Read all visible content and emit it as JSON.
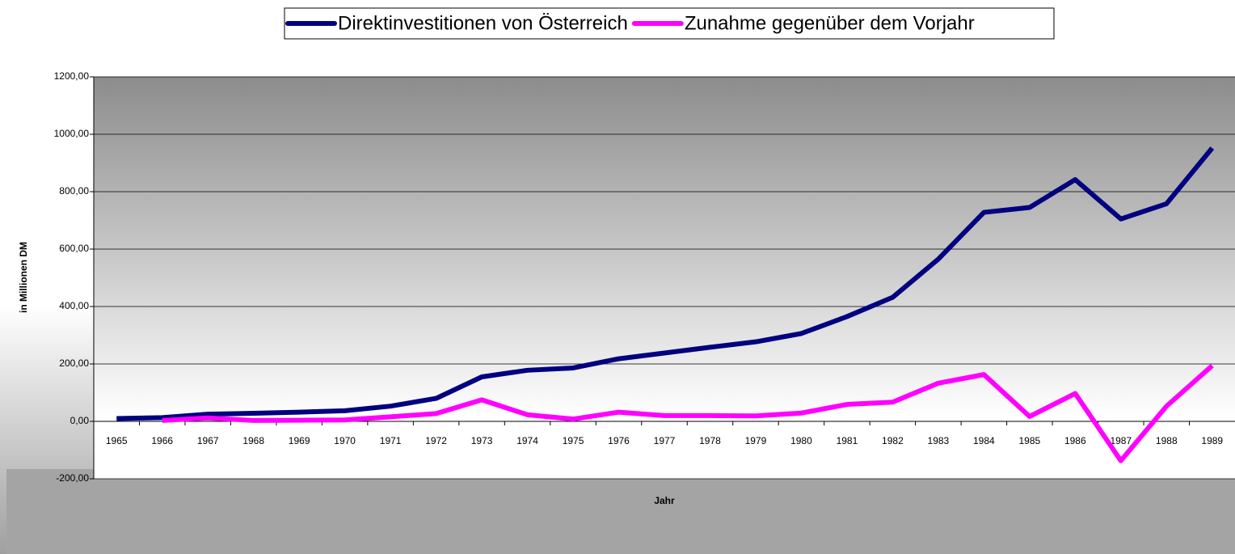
{
  "chart_data": {
    "type": "line",
    "x_label": "Jahr",
    "y_label": "in Millionen DM",
    "categories": [
      "1965",
      "1966",
      "1967",
      "1968",
      "1969",
      "1970",
      "1971",
      "1972",
      "1973",
      "1974",
      "1975",
      "1976",
      "1977",
      "1978",
      "1979",
      "1980",
      "1981",
      "1982",
      "1983",
      "1984",
      "1985",
      "1986",
      "1987",
      "1988",
      "1989"
    ],
    "series": [
      {
        "name": "Direktinvestitionen von Österreich",
        "color": "#000080",
        "values": [
          10,
          13,
          25,
          28,
          32,
          37,
          53,
          80,
          155,
          178,
          186,
          218,
          238,
          258,
          277,
          306,
          365,
          432,
          565,
          728,
          745,
          842,
          705,
          758,
          952
        ]
      },
      {
        "name": "Zunahme gegenüber dem Vorjahr",
        "color": "#ff00ff",
        "values": [
          null,
          3,
          12,
          3,
          4,
          5,
          16,
          27,
          75,
          23,
          8,
          32,
          20,
          20,
          19,
          29,
          59,
          67,
          133,
          163,
          17,
          97,
          -137,
          53,
          194
        ]
      }
    ],
    "ylim": [
      -200,
      1200
    ],
    "yticks": [
      {
        "value": -200,
        "label": "-200,00"
      },
      {
        "value": 0,
        "label": "0,00"
      },
      {
        "value": 200,
        "label": "200,00"
      },
      {
        "value": 400,
        "label": "400,00"
      },
      {
        "value": 600,
        "label": "600,00"
      },
      {
        "value": 800,
        "label": "800,00"
      },
      {
        "value": 1000,
        "label": "1000,00"
      },
      {
        "value": 1200,
        "label": "1200,00"
      }
    ],
    "grid": true,
    "legend": "top"
  }
}
